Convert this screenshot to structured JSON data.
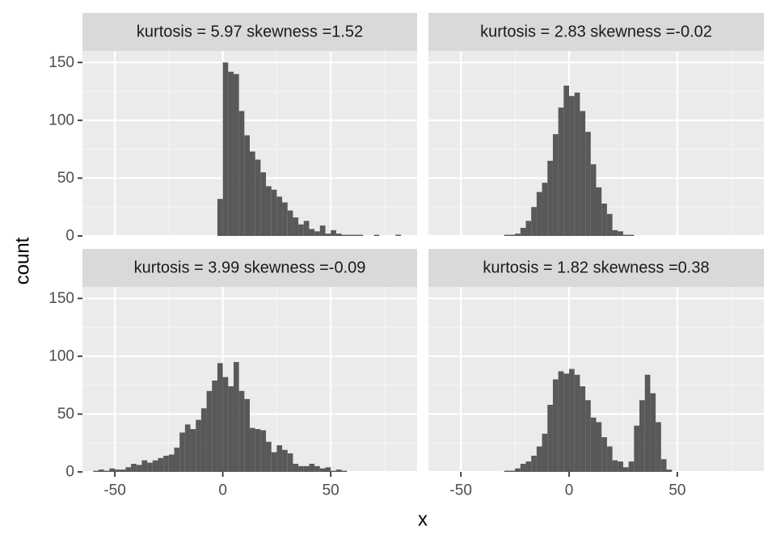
{
  "colors": {
    "panel_background": "#EBEBEB",
    "strip_background": "#D9D9D9",
    "grid_major": "#FFFFFF",
    "grid_minor": "#F5F5F5",
    "bar_fill": "#595959",
    "tick_text": "#4D4D4D"
  },
  "chart_data": {
    "type": "bar",
    "layout": "facet-grid-2x2",
    "xlabel": "x",
    "ylabel": "count",
    "xlim": [
      -65,
      90
    ],
    "ylim": [
      0,
      160
    ],
    "x_ticks": [
      -50,
      0,
      50
    ],
    "x_tick_labels": [
      "-50",
      "0",
      "50"
    ],
    "y_ticks": [
      0,
      50,
      100,
      150
    ],
    "y_tick_labels": [
      "0",
      "50",
      "100",
      "150"
    ],
    "bin_width": 2.5,
    "grid": true,
    "panels": [
      {
        "strip": "kurtosis = 5.97 skewness =1.52",
        "bins": [
          {
            "x": -1.25,
            "count": 32
          },
          {
            "x": 1.25,
            "count": 150
          },
          {
            "x": 3.75,
            "count": 142
          },
          {
            "x": 6.25,
            "count": 140
          },
          {
            "x": 8.75,
            "count": 108
          },
          {
            "x": 11.25,
            "count": 87
          },
          {
            "x": 13.75,
            "count": 73
          },
          {
            "x": 16.25,
            "count": 66
          },
          {
            "x": 18.75,
            "count": 55
          },
          {
            "x": 21.25,
            "count": 43
          },
          {
            "x": 23.75,
            "count": 40
          },
          {
            "x": 26.25,
            "count": 34
          },
          {
            "x": 28.75,
            "count": 29
          },
          {
            "x": 31.25,
            "count": 22
          },
          {
            "x": 33.75,
            "count": 16
          },
          {
            "x": 36.25,
            "count": 10
          },
          {
            "x": 38.75,
            "count": 13
          },
          {
            "x": 41.25,
            "count": 6
          },
          {
            "x": 43.75,
            "count": 4
          },
          {
            "x": 46.25,
            "count": 9
          },
          {
            "x": 48.75,
            "count": 2
          },
          {
            "x": 51.25,
            "count": 5
          },
          {
            "x": 53.75,
            "count": 2
          },
          {
            "x": 56.25,
            "count": 1
          },
          {
            "x": 58.75,
            "count": 1
          },
          {
            "x": 61.25,
            "count": 1
          },
          {
            "x": 63.75,
            "count": 1
          },
          {
            "x": 66.25,
            "count": 0
          },
          {
            "x": 68.75,
            "count": 0
          },
          {
            "x": 71.25,
            "count": 1
          },
          {
            "x": 73.75,
            "count": 0
          },
          {
            "x": 76.25,
            "count": 0
          },
          {
            "x": 78.75,
            "count": 0
          },
          {
            "x": 81.25,
            "count": 1
          }
        ]
      },
      {
        "strip": "kurtosis = 2.83 skewness =-0.02",
        "bins": [
          {
            "x": -28.75,
            "count": 1
          },
          {
            "x": -26.25,
            "count": 1
          },
          {
            "x": -23.75,
            "count": 2
          },
          {
            "x": -21.25,
            "count": 7
          },
          {
            "x": -18.75,
            "count": 13
          },
          {
            "x": -16.25,
            "count": 25
          },
          {
            "x": -13.75,
            "count": 38
          },
          {
            "x": -11.25,
            "count": 46
          },
          {
            "x": -8.75,
            "count": 65
          },
          {
            "x": -6.25,
            "count": 88
          },
          {
            "x": -3.75,
            "count": 111
          },
          {
            "x": -1.25,
            "count": 130
          },
          {
            "x": 1.25,
            "count": 121
          },
          {
            "x": 3.75,
            "count": 124
          },
          {
            "x": 6.25,
            "count": 108
          },
          {
            "x": 8.75,
            "count": 90
          },
          {
            "x": 11.25,
            "count": 62
          },
          {
            "x": 13.75,
            "count": 42
          },
          {
            "x": 16.25,
            "count": 28
          },
          {
            "x": 18.75,
            "count": 19
          },
          {
            "x": 21.25,
            "count": 5
          },
          {
            "x": 23.75,
            "count": 4
          },
          {
            "x": 26.25,
            "count": 1
          },
          {
            "x": 28.75,
            "count": 1
          }
        ]
      },
      {
        "strip": "kurtosis = 3.99 skewness =-0.09",
        "bins": [
          {
            "x": -58.75,
            "count": 1
          },
          {
            "x": -56.25,
            "count": 2
          },
          {
            "x": -53.75,
            "count": 1
          },
          {
            "x": -51.25,
            "count": 3
          },
          {
            "x": -48.75,
            "count": 2
          },
          {
            "x": -46.25,
            "count": 2
          },
          {
            "x": -43.75,
            "count": 4
          },
          {
            "x": -41.25,
            "count": 7
          },
          {
            "x": -38.75,
            "count": 6
          },
          {
            "x": -36.25,
            "count": 10
          },
          {
            "x": -33.75,
            "count": 8
          },
          {
            "x": -31.25,
            "count": 10
          },
          {
            "x": -28.75,
            "count": 12
          },
          {
            "x": -26.25,
            "count": 14
          },
          {
            "x": -23.75,
            "count": 15
          },
          {
            "x": -21.25,
            "count": 21
          },
          {
            "x": -18.75,
            "count": 34
          },
          {
            "x": -16.25,
            "count": 41
          },
          {
            "x": -13.75,
            "count": 37
          },
          {
            "x": -11.25,
            "count": 45
          },
          {
            "x": -8.75,
            "count": 55
          },
          {
            "x": -6.25,
            "count": 70
          },
          {
            "x": -3.75,
            "count": 79
          },
          {
            "x": -1.25,
            "count": 94
          },
          {
            "x": 1.25,
            "count": 82
          },
          {
            "x": 3.75,
            "count": 74
          },
          {
            "x": 6.25,
            "count": 95
          },
          {
            "x": 8.75,
            "count": 70
          },
          {
            "x": 11.25,
            "count": 63
          },
          {
            "x": 13.75,
            "count": 38
          },
          {
            "x": 16.25,
            "count": 37
          },
          {
            "x": 18.75,
            "count": 36
          },
          {
            "x": 21.25,
            "count": 26
          },
          {
            "x": 23.75,
            "count": 17
          },
          {
            "x": 26.25,
            "count": 23
          },
          {
            "x": 28.75,
            "count": 19
          },
          {
            "x": 31.25,
            "count": 16
          },
          {
            "x": 33.75,
            "count": 7
          },
          {
            "x": 36.25,
            "count": 5
          },
          {
            "x": 38.75,
            "count": 5
          },
          {
            "x": 41.25,
            "count": 7
          },
          {
            "x": 43.75,
            "count": 5
          },
          {
            "x": 46.25,
            "count": 3
          },
          {
            "x": 48.75,
            "count": 4
          },
          {
            "x": 51.25,
            "count": 1
          },
          {
            "x": 53.75,
            "count": 2
          },
          {
            "x": 56.25,
            "count": 1
          }
        ]
      },
      {
        "strip": "kurtosis = 1.82 skewness =0.38",
        "bins": [
          {
            "x": -28.75,
            "count": 1
          },
          {
            "x": -26.25,
            "count": 1
          },
          {
            "x": -23.75,
            "count": 3
          },
          {
            "x": -21.25,
            "count": 7
          },
          {
            "x": -18.75,
            "count": 9
          },
          {
            "x": -16.25,
            "count": 14
          },
          {
            "x": -13.75,
            "count": 22
          },
          {
            "x": -11.25,
            "count": 33
          },
          {
            "x": -8.75,
            "count": 58
          },
          {
            "x": -6.25,
            "count": 80
          },
          {
            "x": -3.75,
            "count": 87
          },
          {
            "x": -1.25,
            "count": 85
          },
          {
            "x": 1.25,
            "count": 89
          },
          {
            "x": 3.75,
            "count": 84
          },
          {
            "x": 6.25,
            "count": 74
          },
          {
            "x": 8.75,
            "count": 62
          },
          {
            "x": 11.25,
            "count": 47
          },
          {
            "x": 13.75,
            "count": 43
          },
          {
            "x": 16.25,
            "count": 30
          },
          {
            "x": 18.75,
            "count": 22
          },
          {
            "x": 21.25,
            "count": 10
          },
          {
            "x": 23.75,
            "count": 9
          },
          {
            "x": 26.25,
            "count": 4
          },
          {
            "x": 28.75,
            "count": 9
          },
          {
            "x": 31.25,
            "count": 40
          },
          {
            "x": 33.75,
            "count": 62
          },
          {
            "x": 36.25,
            "count": 84
          },
          {
            "x": 38.75,
            "count": 68
          },
          {
            "x": 41.25,
            "count": 43
          },
          {
            "x": 43.75,
            "count": 11
          },
          {
            "x": 46.25,
            "count": 2
          }
        ]
      }
    ]
  }
}
